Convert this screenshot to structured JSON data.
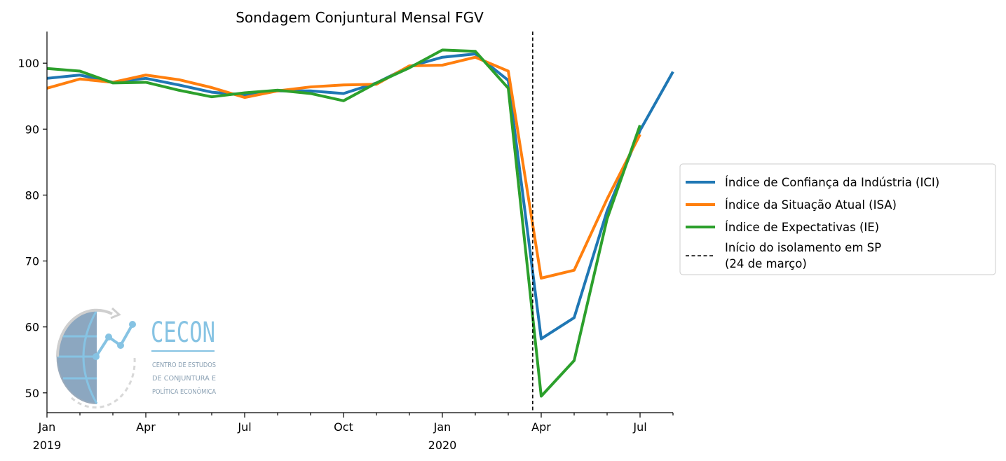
{
  "chart_data": {
    "type": "line",
    "title": "Sondagem Conjuntural Mensal FGV",
    "xlabel": "",
    "ylabel": "",
    "x": [
      "2019-01",
      "2019-02",
      "2019-03",
      "2019-04",
      "2019-05",
      "2019-06",
      "2019-07",
      "2019-08",
      "2019-09",
      "2019-10",
      "2019-11",
      "2019-12",
      "2020-01",
      "2020-02",
      "2020-03",
      "2020-04",
      "2020-05",
      "2020-06",
      "2020-07",
      "2020-08"
    ],
    "ylim": [
      47,
      104.8
    ],
    "yticks": [
      50,
      60,
      70,
      80,
      90,
      100
    ],
    "xtick_labels": [
      {
        "x": "2019-01",
        "label": [
          "Jan",
          "2019"
        ]
      },
      {
        "x": "2019-04",
        "label": [
          "Apr"
        ]
      },
      {
        "x": "2019-07",
        "label": [
          "Jul"
        ]
      },
      {
        "x": "2019-10",
        "label": [
          "Oct"
        ]
      },
      {
        "x": "2020-01",
        "label": [
          "Jan",
          "2020"
        ]
      },
      {
        "x": "2020-04",
        "label": [
          "Apr"
        ]
      },
      {
        "x": "2020-07",
        "label": [
          "Jul"
        ]
      }
    ],
    "series": [
      {
        "name": "Índice de Confiança da Indústria (ICI)",
        "color": "#1f77b4",
        "values": [
          97.7,
          98.2,
          97.1,
          97.7,
          96.7,
          95.6,
          95.2,
          95.8,
          95.8,
          95.4,
          97.0,
          99.5,
          100.9,
          101.4,
          97.4,
          58.2,
          61.4,
          77.6,
          89.8,
          98.7
        ]
      },
      {
        "name": "Índice da Situação Atual (ISA)",
        "color": "#ff7f0e",
        "values": [
          96.2,
          97.6,
          97.1,
          98.2,
          97.5,
          96.3,
          94.8,
          95.8,
          96.4,
          96.7,
          96.8,
          99.6,
          99.7,
          100.9,
          98.8,
          67.4,
          68.6,
          79.4,
          89.2,
          null
        ]
      },
      {
        "name": "Índice de Expectativas (IE)",
        "color": "#2ca02c",
        "values": [
          99.2,
          98.8,
          97.0,
          97.1,
          95.9,
          94.9,
          95.5,
          95.9,
          95.4,
          94.3,
          97.0,
          99.3,
          102.0,
          101.8,
          96.2,
          49.5,
          54.9,
          76.4,
          90.6,
          null
        ]
      }
    ],
    "vline": {
      "x": "2020-03-24",
      "label": [
        "Início do isolamento em SP",
        "(24 de março)"
      ],
      "style": "dashed",
      "color": "#000000"
    },
    "legend": "right",
    "grid": false
  },
  "logo": {
    "title": "CECON",
    "lines": [
      "CENTRO DE ESTUDOS",
      "DE CONJUNTURA E",
      "POLÍTICA ECONÔMICA"
    ]
  }
}
